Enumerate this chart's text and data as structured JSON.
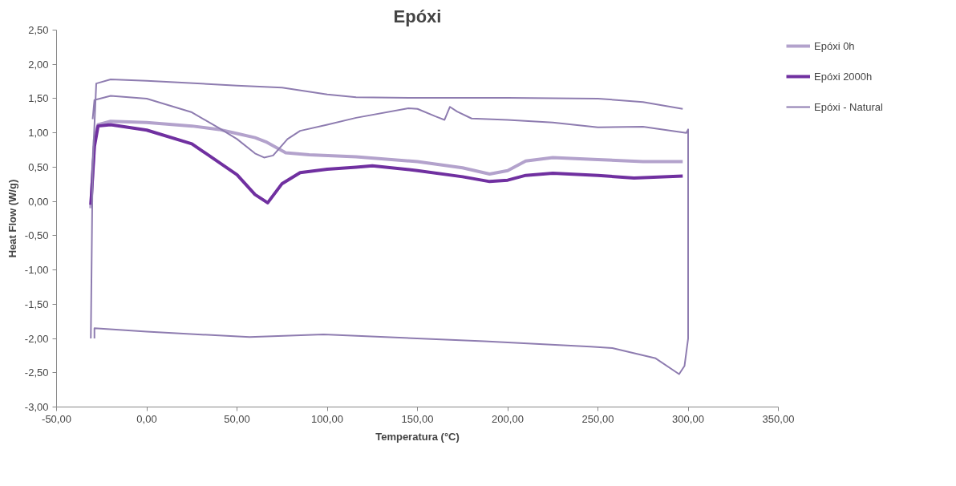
{
  "chart_data": {
    "type": "line",
    "title": "Epóxi",
    "xlabel": "Temperatura (°C)",
    "ylabel": "Heat Flow (W/g)",
    "xlim": [
      -50,
      350
    ],
    "ylim": [
      -3,
      2.5
    ],
    "xticks": [
      {
        "value": -50,
        "label": "-50,00"
      },
      {
        "value": 0,
        "label": "0,00"
      },
      {
        "value": 50,
        "label": "50,00"
      },
      {
        "value": 100,
        "label": "100,00"
      },
      {
        "value": 150,
        "label": "150,00"
      },
      {
        "value": 200,
        "label": "200,00"
      },
      {
        "value": 250,
        "label": "250,00"
      },
      {
        "value": 300,
        "label": "300,00"
      },
      {
        "value": 350,
        "label": "350,00"
      }
    ],
    "yticks": [
      {
        "value": -3,
        "label": "-3,00"
      },
      {
        "value": -2.5,
        "label": "-2,50"
      },
      {
        "value": -2,
        "label": "-2,00"
      },
      {
        "value": -1.5,
        "label": "-1,50"
      },
      {
        "value": -1,
        "label": "-1,00"
      },
      {
        "value": -0.5,
        "label": "-0,50"
      },
      {
        "value": 0,
        "label": "0,00"
      },
      {
        "value": 0.5,
        "label": "0,50"
      },
      {
        "value": 1,
        "label": "1,00"
      },
      {
        "value": 1.5,
        "label": "1,50"
      },
      {
        "value": 2,
        "label": "2,00"
      },
      {
        "value": 2.5,
        "label": "2,50"
      }
    ],
    "grid": false,
    "legend": "right",
    "marker": "none",
    "series": [
      {
        "name": "Epóxi 0h",
        "color": "#b3a2cc",
        "x": [
          -31,
          -29,
          -27,
          -20,
          0,
          25,
          40,
          50,
          60,
          66,
          77,
          90,
          116,
          150,
          175,
          190,
          200,
          210,
          225,
          250,
          275,
          297
        ],
        "values": [
          -0.1,
          0.9,
          1.12,
          1.17,
          1.15,
          1.1,
          1.05,
          0.99,
          0.93,
          0.87,
          0.71,
          0.68,
          0.65,
          0.58,
          0.49,
          0.4,
          0.45,
          0.59,
          0.64,
          0.61,
          0.58,
          0.58
        ]
      },
      {
        "name": "Epóxi 2000h",
        "color": "#7030a0",
        "x": [
          -31,
          -29,
          -27,
          -20,
          0,
          25,
          50,
          60,
          67,
          75,
          85,
          100,
          116,
          125,
          150,
          175,
          190,
          200,
          210,
          225,
          250,
          270,
          297
        ],
        "values": [
          -0.05,
          0.8,
          1.1,
          1.12,
          1.04,
          0.84,
          0.39,
          0.1,
          -0.02,
          0.26,
          0.42,
          0.47,
          0.5,
          0.52,
          0.45,
          0.36,
          0.29,
          0.31,
          0.38,
          0.41,
          0.38,
          0.34,
          0.37
        ]
      },
      {
        "name": "Epóxi - Natural",
        "color": "#8e7cb0",
        "x": [
          -31,
          -30,
          -28,
          -20,
          0,
          50,
          75,
          100,
          116,
          150,
          200,
          250,
          275,
          297,
          null,
          -30,
          -29,
          -20,
          0,
          25,
          40,
          50,
          60,
          65,
          70,
          78,
          85,
          100,
          116,
          145,
          150,
          160,
          165,
          168,
          172,
          180,
          200,
          225,
          250,
          275,
          299,
          300,
          300,
          298,
          295,
          282,
          258,
          246,
          187,
          98,
          57,
          0,
          -29,
          -29
        ],
        "values": [
          -2.0,
          0.5,
          1.72,
          1.78,
          1.76,
          1.69,
          1.66,
          1.56,
          1.52,
          1.51,
          1.51,
          1.5,
          1.45,
          1.35,
          null,
          1.2,
          1.48,
          1.54,
          1.5,
          1.3,
          1.07,
          0.91,
          0.7,
          0.64,
          0.67,
          0.91,
          1.03,
          1.12,
          1.22,
          1.36,
          1.35,
          1.24,
          1.19,
          1.38,
          1.31,
          1.21,
          1.19,
          1.15,
          1.08,
          1.09,
          1.0,
          1.05,
          -2.0,
          -2.4,
          -2.52,
          -2.29,
          -2.14,
          -2.12,
          -2.04,
          -1.94,
          -1.98,
          -1.9,
          -1.85,
          -2.0
        ]
      }
    ]
  }
}
